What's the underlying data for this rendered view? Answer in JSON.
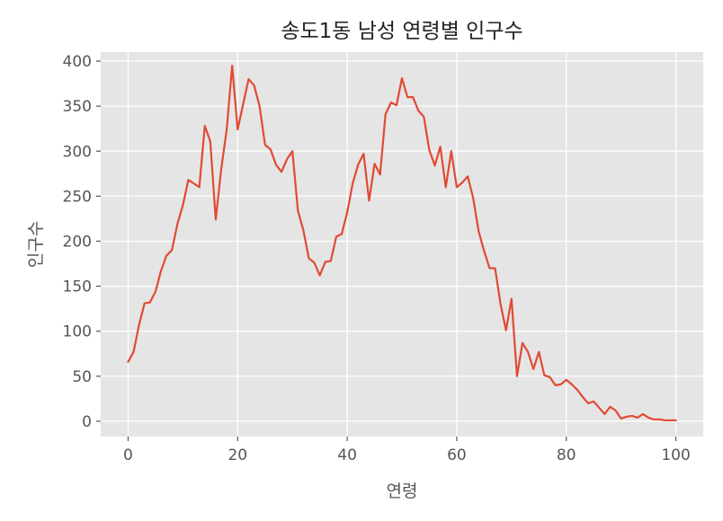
{
  "chart_data": {
    "type": "line",
    "title": "송도1동 남성 연령별 인구수",
    "xlabel": "연령",
    "ylabel": "인구수",
    "xlim": [
      -5,
      105
    ],
    "ylim": [
      -17,
      410
    ],
    "xticks": [
      0,
      20,
      40,
      60,
      80,
      100
    ],
    "yticks": [
      0,
      50,
      100,
      150,
      200,
      250,
      300,
      350,
      400
    ],
    "grid": true,
    "style": "ggplot",
    "colors": {
      "background": "#e5e5e5",
      "grid": "#ffffff",
      "line": "#e24a33"
    },
    "series": [
      {
        "x": [
          0,
          1,
          2,
          3,
          4,
          5,
          6,
          7,
          8,
          9,
          10,
          11,
          12,
          13,
          14,
          15,
          16,
          17,
          18,
          19,
          20,
          21,
          22,
          23,
          24,
          25,
          26,
          27,
          28,
          29,
          30,
          31,
          32,
          33,
          34,
          35,
          36,
          37,
          38,
          39,
          40,
          41,
          42,
          43,
          44,
          45,
          46,
          47,
          48,
          49,
          50,
          51,
          52,
          53,
          54,
          55,
          56,
          57,
          58,
          59,
          60,
          61,
          62,
          63,
          64,
          65,
          66,
          67,
          68,
          69,
          70,
          71,
          72,
          73,
          74,
          75,
          76,
          77,
          78,
          79,
          80,
          81,
          82,
          83,
          84,
          85,
          86,
          87,
          88,
          89,
          90,
          91,
          92,
          93,
          94,
          95,
          96,
          97,
          98,
          99,
          100
        ],
        "values": [
          66,
          77,
          107,
          131,
          132,
          144,
          167,
          184,
          190,
          219,
          240,
          268,
          264,
          260,
          328,
          311,
          224,
          280,
          324,
          395,
          324,
          352,
          380,
          373,
          350,
          307,
          302,
          285,
          277,
          291,
          300,
          234,
          212,
          181,
          176,
          162,
          177,
          178,
          205,
          208,
          232,
          264,
          285,
          297,
          245,
          286,
          274,
          341,
          354,
          351,
          381,
          360,
          360,
          345,
          338,
          301,
          284,
          305,
          260,
          300,
          260,
          265,
          272,
          248,
          211,
          189,
          170,
          170,
          130,
          101,
          136,
          50,
          87,
          77,
          58,
          77,
          51,
          49,
          40,
          41,
          46,
          41,
          35,
          27,
          20,
          22,
          15,
          8,
          16,
          12,
          3,
          5,
          6,
          4,
          8,
          4,
          2,
          2,
          1,
          1,
          1
        ]
      }
    ]
  }
}
